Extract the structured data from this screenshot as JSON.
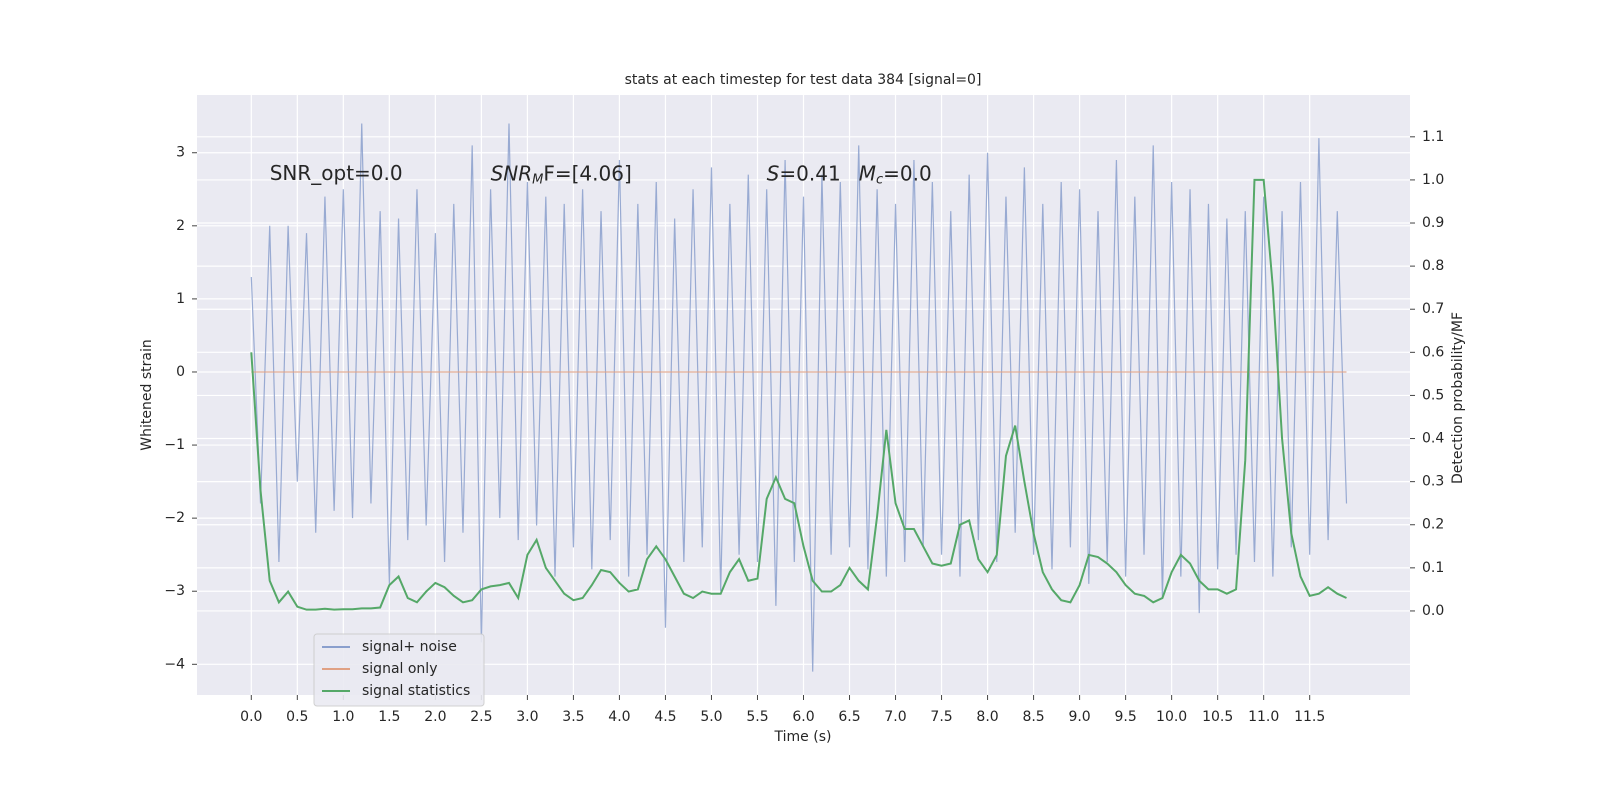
{
  "chart_data": {
    "type": "line",
    "title": "stats at each timestep for test data 384 [signal=0]",
    "xlabel": "Time (s)",
    "ylabel": "Whitened strain",
    "y2label": "Detection probability/MF",
    "annotations": [
      {
        "text": "SNR_opt=0.0",
        "x": 0.2,
        "y": 2.7
      },
      {
        "parts": [
          "SNR",
          "M",
          "F=[4.06]"
        ],
        "x": 2.6,
        "y": 2.7
      },
      {
        "parts": [
          "S",
          "=0.41"
        ],
        "x": 5.6,
        "y": 2.7
      },
      {
        "parts": [
          "M",
          "c",
          "=0.0"
        ],
        "x": 6.6,
        "y": 2.7
      }
    ],
    "x": [
      0.0,
      0.1,
      0.2,
      0.3,
      0.4,
      0.5,
      0.6,
      0.7,
      0.8,
      0.9,
      1.0,
      1.1,
      1.2,
      1.3,
      1.4,
      1.5,
      1.6,
      1.7,
      1.8,
      1.9,
      2.0,
      2.1,
      2.2,
      2.3,
      2.4,
      2.5,
      2.6,
      2.7,
      2.8,
      2.9,
      3.0,
      3.1,
      3.2,
      3.3,
      3.4,
      3.5,
      3.6,
      3.7,
      3.8,
      3.9,
      4.0,
      4.1,
      4.2,
      4.3,
      4.4,
      4.5,
      4.6,
      4.7,
      4.8,
      4.9,
      5.0,
      5.1,
      5.2,
      5.3,
      5.4,
      5.5,
      5.6,
      5.7,
      5.8,
      5.9,
      6.0,
      6.1,
      6.2,
      6.3,
      6.4,
      6.5,
      6.6,
      6.7,
      6.8,
      6.9,
      7.0,
      7.1,
      7.2,
      7.3,
      7.4,
      7.5,
      7.6,
      7.7,
      7.8,
      7.9,
      8.0,
      8.1,
      8.2,
      8.3,
      8.4,
      8.5,
      8.6,
      8.7,
      8.8,
      8.9,
      9.0,
      9.1,
      9.2,
      9.3,
      9.4,
      9.5,
      9.6,
      9.7,
      9.8,
      9.9,
      10.0,
      10.1,
      10.2,
      10.3,
      10.4,
      10.5,
      10.6,
      10.7,
      10.8,
      10.9,
      11.0,
      11.1,
      11.2,
      11.3,
      11.4,
      11.5,
      11.6,
      11.7,
      11.8,
      11.9
    ],
    "series": [
      {
        "name": "signal+ noise",
        "color": "#8a9fcd",
        "axis": "y",
        "values": [
          1.3,
          -1.8,
          2.0,
          -2.6,
          2.0,
          -1.5,
          1.9,
          -2.2,
          2.4,
          -1.9,
          2.5,
          -2.0,
          3.4,
          -1.8,
          2.2,
          -2.9,
          2.1,
          -2.3,
          2.5,
          -2.1,
          1.9,
          -2.6,
          2.3,
          -2.2,
          3.1,
          -3.7,
          2.5,
          -2.0,
          3.4,
          -2.3,
          2.6,
          -2.1,
          2.4,
          -2.8,
          2.3,
          -2.4,
          2.5,
          -2.7,
          2.2,
          -2.3,
          2.9,
          -2.8,
          2.3,
          -2.5,
          2.6,
          -3.5,
          2.1,
          -2.6,
          2.5,
          -2.4,
          2.8,
          -3.0,
          2.3,
          -2.5,
          2.7,
          -2.6,
          2.5,
          -3.2,
          2.9,
          -2.6,
          2.4,
          -4.1,
          2.7,
          -2.5,
          2.6,
          -2.4,
          3.1,
          -2.7,
          2.5,
          -2.8,
          2.3,
          -2.6,
          2.9,
          -2.4,
          2.6,
          -2.5,
          2.2,
          -2.8,
          2.7,
          -2.3,
          3.0,
          -2.6,
          2.4,
          -2.2,
          2.8,
          -2.5,
          2.3,
          -2.7,
          2.6,
          -2.4,
          2.5,
          -2.9,
          2.2,
          -2.6,
          2.9,
          -2.8,
          2.4,
          -2.5,
          3.1,
          -3.1,
          2.6,
          -2.8,
          2.5,
          -3.3,
          2.3,
          -2.7,
          2.1,
          -2.5,
          2.2,
          -2.6,
          2.4,
          -2.8,
          2.2,
          -2.4,
          2.6,
          -2.5,
          3.2,
          -2.3,
          2.2,
          -1.8
        ]
      },
      {
        "name": "signal only",
        "color": "#e0a184",
        "axis": "y",
        "values": [
          0,
          0,
          0,
          0,
          0,
          0,
          0,
          0,
          0,
          0,
          0,
          0,
          0,
          0,
          0,
          0,
          0,
          0,
          0,
          0,
          0,
          0,
          0,
          0,
          0,
          0,
          0,
          0,
          0,
          0,
          0,
          0,
          0,
          0,
          0,
          0,
          0,
          0,
          0,
          0,
          0,
          0,
          0,
          0,
          0,
          0,
          0,
          0,
          0,
          0,
          0,
          0,
          0,
          0,
          0,
          0,
          0,
          0,
          0,
          0,
          0,
          0,
          0,
          0,
          0,
          0,
          0,
          0,
          0,
          0,
          0,
          0,
          0,
          0,
          0,
          0,
          0,
          0,
          0,
          0,
          0,
          0,
          0,
          0,
          0,
          0,
          0,
          0,
          0,
          0,
          0,
          0,
          0,
          0,
          0,
          0,
          0,
          0,
          0,
          0,
          0,
          0,
          0,
          0,
          0,
          0,
          0,
          0,
          0,
          0,
          0,
          0,
          0,
          0,
          0,
          0,
          0,
          0,
          0,
          0
        ]
      },
      {
        "name": "signal statistics",
        "color": "#55a868",
        "axis": "y2",
        "values": [
          0.6,
          0.28,
          0.07,
          0.02,
          0.045,
          0.01,
          0.003,
          0.003,
          0.005,
          0.003,
          0.004,
          0.004,
          0.006,
          0.006,
          0.008,
          0.06,
          0.08,
          0.03,
          0.02,
          0.045,
          0.065,
          0.055,
          0.035,
          0.02,
          0.025,
          0.05,
          0.057,
          0.06,
          0.065,
          0.03,
          0.13,
          0.165,
          0.1,
          0.07,
          0.04,
          0.025,
          0.03,
          0.06,
          0.095,
          0.09,
          0.065,
          0.045,
          0.05,
          0.12,
          0.15,
          0.12,
          0.08,
          0.04,
          0.03,
          0.045,
          0.04,
          0.04,
          0.09,
          0.12,
          0.07,
          0.075,
          0.26,
          0.31,
          0.26,
          0.25,
          0.15,
          0.07,
          0.045,
          0.045,
          0.06,
          0.1,
          0.07,
          0.05,
          0.22,
          0.42,
          0.25,
          0.19,
          0.19,
          0.15,
          0.11,
          0.105,
          0.11,
          0.2,
          0.21,
          0.12,
          0.09,
          0.13,
          0.36,
          0.43,
          0.3,
          0.18,
          0.09,
          0.05,
          0.025,
          0.02,
          0.06,
          0.13,
          0.125,
          0.11,
          0.09,
          0.06,
          0.04,
          0.035,
          0.02,
          0.03,
          0.09,
          0.13,
          0.11,
          0.07,
          0.05,
          0.05,
          0.04,
          0.05,
          0.35,
          1.0,
          1.0,
          0.75,
          0.4,
          0.18,
          0.08,
          0.035,
          0.04,
          0.055,
          0.04,
          0.03
        ]
      }
    ],
    "xlim": [
      -0.59,
      12.59
    ],
    "xticks": [
      {
        "value": 0,
        "label": "0.0"
      },
      0.5,
      {
        "value": 1,
        "label": "1.0"
      },
      1.5,
      {
        "value": 2,
        "label": "2.0"
      },
      2.5,
      {
        "value": 3,
        "label": "3.0"
      },
      3.5,
      {
        "value": 4,
        "label": "4.0"
      },
      4.5,
      {
        "value": 5,
        "label": "5.0"
      },
      5.5,
      {
        "value": 6,
        "label": "6.0"
      },
      6.5,
      {
        "value": 7,
        "label": "7.0"
      },
      7.5,
      {
        "value": 8,
        "label": "8.0"
      },
      8.5,
      {
        "value": 9,
        "label": "9.0"
      },
      9.5,
      {
        "value": 10,
        "label": "10.0"
      },
      10.5,
      {
        "value": 11,
        "label": "11.0"
      },
      11.5
    ],
    "ylim": [
      -4.42,
      3.79
    ],
    "yticks": [
      {
        "value": -4,
        "label": "−4"
      },
      {
        "value": -3,
        "label": "−3"
      },
      {
        "value": -2,
        "label": "−2"
      },
      {
        "value": -1,
        "label": "−1"
      },
      0,
      1,
      2,
      3
    ],
    "y2lim": [
      -0.195,
      1.197
    ],
    "y2ticks": [
      {
        "value": 0,
        "label": "0.0"
      },
      0.1,
      0.2,
      0.3,
      0.4,
      0.5,
      0.6,
      0.7,
      0.8,
      0.9,
      {
        "value": 1,
        "label": "1.0"
      },
      1.1
    ],
    "grid": true,
    "legend": "lower left",
    "background": "#eaeaf2"
  }
}
